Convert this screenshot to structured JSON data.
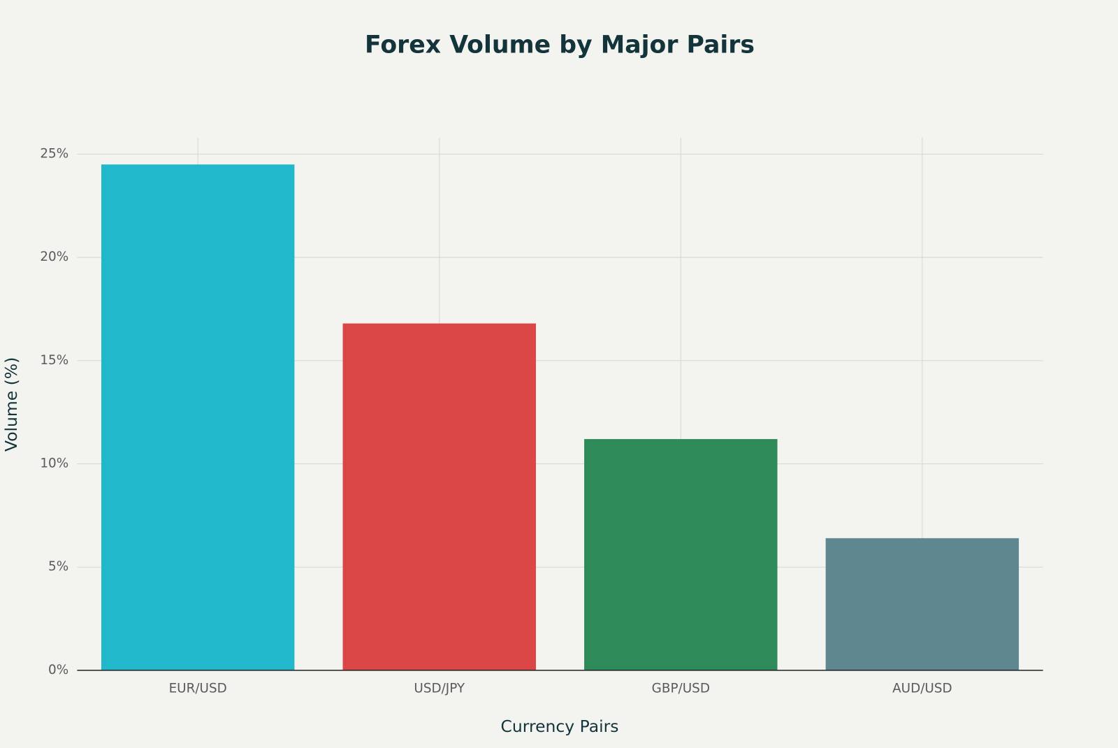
{
  "chart_data": {
    "type": "bar",
    "title": "Forex Volume by Major Pairs",
    "x_label": "Currency Pairs",
    "y_label": "Volume (%)",
    "categories": [
      "EUR/USD",
      "USD/JPY",
      "GBP/USD",
      "AUD/USD"
    ],
    "values": [
      24.5,
      16.8,
      11.2,
      6.4
    ],
    "colors": [
      "#21b8cc",
      "#db4647",
      "#2f8a59",
      "#5e8790"
    ],
    "ylim": [
      0,
      25.8
    ],
    "yticks": [
      {
        "value": 0,
        "label": "0%"
      },
      {
        "value": 5,
        "label": "5%"
      },
      {
        "value": 10,
        "label": "10%"
      },
      {
        "value": 15,
        "label": "15%"
      },
      {
        "value": 20,
        "label": "20%"
      },
      {
        "value": 25,
        "label": "25%"
      }
    ],
    "grid": true
  }
}
